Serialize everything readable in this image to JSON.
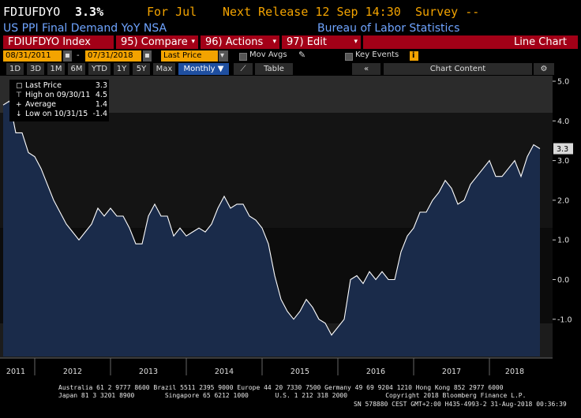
{
  "header": {
    "ticker": "FDIUFDYO",
    "value": "3.3%",
    "period": "For Jul",
    "next_release": "Next Release 12 Sep 14:30",
    "survey": "Survey --",
    "subtitle": "US PPI Final Demand YoY NSA",
    "source": "Bureau of Labor Statistics"
  },
  "toolbar": {
    "index": "FDIUFDYO Index",
    "compare": "95) Compare",
    "actions": "96) Actions",
    "edit": "97) Edit",
    "view": "Line Chart"
  },
  "controls": {
    "start_date": "08/31/2011",
    "end_date": "07/31/2018",
    "field": "Last Price",
    "mov_avgs": "Mov Avgs",
    "key_events": "Key Events",
    "info_icon": "i"
  },
  "ranges": [
    "1D",
    "3D",
    "1M",
    "6M",
    "YTD",
    "1Y",
    "5Y",
    "Max"
  ],
  "frequency": "Monthly",
  "table_label": "Table",
  "chart_content": "Chart Content",
  "legend": {
    "last_label": "Last Price",
    "last_value": "3.3",
    "high_label": "High on 09/30/11",
    "high_value": "4.5",
    "avg_label": "Average",
    "avg_value": "1.4",
    "low_label": "Low on 10/31/15",
    "low_value": "-1.4"
  },
  "chart_data": {
    "type": "area",
    "yticks": [
      -1.0,
      0.0,
      1.0,
      2.0,
      3.0,
      4.0,
      5.0
    ],
    "ylim": [
      -2.0,
      5.0
    ],
    "xlabels": [
      "2011",
      "2012",
      "2013",
      "2014",
      "2015",
      "2016",
      "2017",
      "2018"
    ],
    "last_value_tag": "3.3",
    "series": [
      {
        "values": [
          4.4,
          4.5,
          3.7,
          3.7,
          3.2,
          3.1,
          2.8,
          2.4,
          2.0,
          1.7,
          1.4,
          1.2,
          1.0,
          1.2,
          1.4,
          1.8,
          1.6,
          1.8,
          1.6,
          1.6,
          1.3,
          0.9,
          0.9,
          1.6,
          1.9,
          1.6,
          1.6,
          1.1,
          1.3,
          1.1,
          1.2,
          1.3,
          1.2,
          1.4,
          1.8,
          2.1,
          1.8,
          1.9,
          1.9,
          1.6,
          1.5,
          1.3,
          0.9,
          0.1,
          -0.5,
          -0.8,
          -1.0,
          -0.8,
          -0.5,
          -0.7,
          -1.0,
          -1.1,
          -1.4,
          -1.2,
          -1.0,
          0.0,
          0.1,
          -0.1,
          0.2,
          0.0,
          0.2,
          0.0,
          0.0,
          0.7,
          1.1,
          1.3,
          1.7,
          1.7,
          2.0,
          2.2,
          2.5,
          2.3,
          1.9,
          2.0,
          2.4,
          2.6,
          2.8,
          3.0,
          2.6,
          2.6,
          2.8,
          3.0,
          2.6,
          3.1,
          3.4,
          3.3
        ]
      }
    ]
  },
  "footer": {
    "line1": "Australia 61 2 9777 8600 Brazil 5511 2395 9000 Europe 44 20 7330 7500 Germany 49 69 9204 1210 Hong Kong 852 2977 6000",
    "line2": "Japan 81 3 3201 8900        Singapore 65 6212 1000       U.S. 1 212 318 2000          Copyright 2018 Bloomberg Finance L.P.",
    "line3": "SN 578880 CEST GMT+2:00 H435-4993-2 31-Aug-2018 00:36:39"
  },
  "colors": {
    "orange": "#f3a300",
    "blue_text": "#6fa4ff",
    "red_bar": "#a30017",
    "area_fill": "#1a2b4a",
    "line": "#ffffff"
  }
}
